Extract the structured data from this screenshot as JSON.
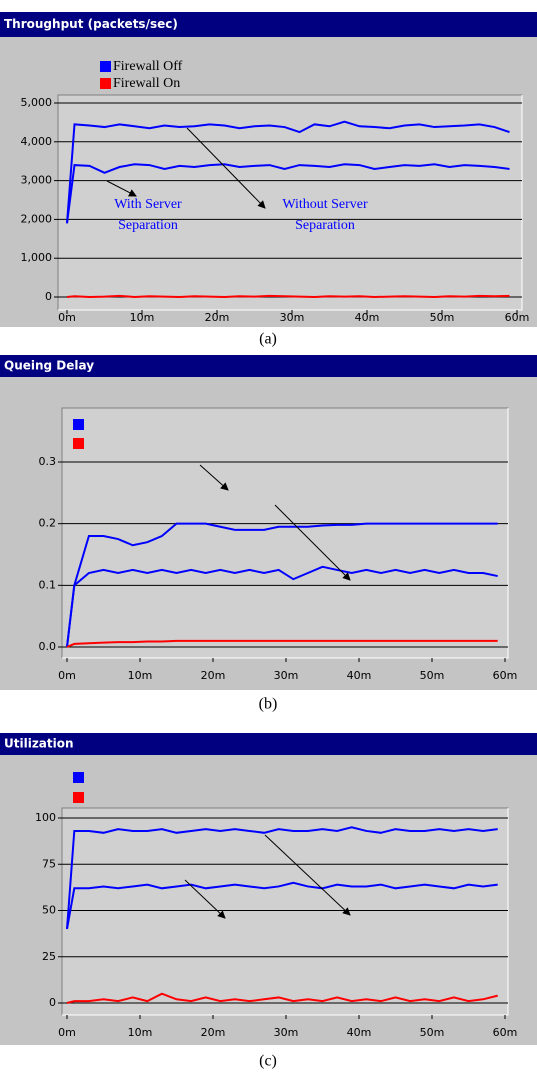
{
  "chart_data": [
    {
      "type": "line",
      "title": "Throughput (packets/sec)",
      "caption": "(a)",
      "legend": [
        {
          "name": "Firewall Off",
          "color": "#0000ff"
        },
        {
          "name": "Firewall On",
          "color": "#ff0000"
        }
      ],
      "x": [
        0,
        1,
        3,
        5,
        7,
        9,
        11,
        13,
        15,
        17,
        19,
        21,
        23,
        25,
        27,
        29,
        31,
        33,
        35,
        37,
        39,
        41,
        43,
        45,
        47,
        49,
        51,
        53,
        55,
        57,
        59
      ],
      "series": [
        {
          "color": "#0000ff",
          "values": [
            1900,
            4450,
            4420,
            4380,
            4450,
            4400,
            4350,
            4420,
            4380,
            4400,
            4450,
            4420,
            4350,
            4400,
            4420,
            4380,
            4250,
            4450,
            4400,
            4520,
            4400,
            4380,
            4350,
            4420,
            4450,
            4380,
            4400,
            4420,
            4450,
            4380,
            4250
          ]
        },
        {
          "color": "#0000ff",
          "values": [
            1900,
            3400,
            3380,
            3200,
            3350,
            3420,
            3400,
            3300,
            3380,
            3350,
            3400,
            3420,
            3350,
            3380,
            3400,
            3300,
            3400,
            3380,
            3350,
            3420,
            3400,
            3300,
            3350,
            3400,
            3380,
            3420,
            3350,
            3400,
            3380,
            3350,
            3300
          ]
        },
        {
          "color": "#ff0000",
          "values": [
            0,
            20,
            0,
            10,
            30,
            0,
            20,
            10,
            0,
            20,
            10,
            0,
            20,
            10,
            30,
            20,
            10,
            0,
            20,
            10,
            20,
            0,
            10,
            20,
            10,
            0,
            20,
            10,
            30,
            20,
            30
          ]
        }
      ],
      "annotations": [
        {
          "lines": [
            "With Server",
            "Separation"
          ]
        },
        {
          "lines": [
            "Without Server",
            "Separation"
          ]
        }
      ],
      "xlim": [
        0,
        60
      ],
      "xticks": [
        {
          "value": 0,
          "label": "0m"
        },
        {
          "value": 10,
          "label": "10m"
        },
        {
          "value": 20,
          "label": "20m"
        },
        {
          "value": 30,
          "label": "30m"
        },
        {
          "value": 40,
          "label": "40m"
        },
        {
          "value": 50,
          "label": "50m"
        },
        {
          "value": 60,
          "label": "60m"
        }
      ],
      "ylim": [
        0,
        5000
      ],
      "yticks": [
        0,
        {
          "value": 1000,
          "label": "1,000"
        },
        {
          "value": 2000,
          "label": "2,000"
        },
        {
          "value": 3000,
          "label": "3,000"
        },
        {
          "value": 4000,
          "label": "4,000"
        },
        {
          "value": 5000,
          "label": "5,000"
        }
      ],
      "grid": true
    },
    {
      "type": "line",
      "title": "Queing Delay",
      "caption": "(b)",
      "legend": [
        {
          "color": "#0000ff"
        },
        {
          "color": "#ff0000"
        }
      ],
      "x": [
        0,
        1,
        3,
        5,
        7,
        9,
        11,
        13,
        15,
        17,
        19,
        21,
        23,
        25,
        27,
        29,
        31,
        33,
        35,
        37,
        39,
        41,
        43,
        45,
        47,
        49,
        51,
        53,
        55,
        57,
        59
      ],
      "series": [
        {
          "color": "#0000ff",
          "values": [
            0,
            0.1,
            0.18,
            0.18,
            0.175,
            0.165,
            0.17,
            0.18,
            0.2,
            0.2,
            0.2,
            0.195,
            0.19,
            0.19,
            0.19,
            0.195,
            0.195,
            0.195,
            0.197,
            0.198,
            0.198,
            0.2,
            0.2,
            0.2,
            0.2,
            0.2,
            0.2,
            0.2,
            0.2,
            0.2,
            0.2
          ]
        },
        {
          "color": "#0000ff",
          "values": [
            0,
            0.1,
            0.12,
            0.125,
            0.12,
            0.125,
            0.12,
            0.125,
            0.12,
            0.125,
            0.12,
            0.125,
            0.12,
            0.125,
            0.12,
            0.125,
            0.11,
            0.12,
            0.13,
            0.125,
            0.12,
            0.125,
            0.12,
            0.125,
            0.12,
            0.125,
            0.12,
            0.125,
            0.12,
            0.12,
            0.115
          ]
        },
        {
          "color": "#ff0000",
          "values": [
            0,
            0.005,
            0.006,
            0.007,
            0.008,
            0.008,
            0.009,
            0.009,
            0.01,
            0.01,
            0.01,
            0.01,
            0.01,
            0.01,
            0.01,
            0.01,
            0.01,
            0.01,
            0.01,
            0.01,
            0.01,
            0.01,
            0.01,
            0.01,
            0.01,
            0.01,
            0.01,
            0.01,
            0.01,
            0.01,
            0.01
          ]
        }
      ],
      "xlim": [
        0,
        60
      ],
      "xticks": [
        {
          "value": 0,
          "label": "0m"
        },
        {
          "value": 10,
          "label": "10m"
        },
        {
          "value": 20,
          "label": "20m"
        },
        {
          "value": 30,
          "label": "30m"
        },
        {
          "value": 40,
          "label": "40m"
        },
        {
          "value": 50,
          "label": "50m"
        },
        {
          "value": 60,
          "label": "60m"
        }
      ],
      "ylim": [
        0,
        0.3
      ],
      "yticks": [
        {
          "value": 0,
          "label": "0.0"
        },
        0.1,
        0.2,
        0.3
      ],
      "grid": true
    },
    {
      "type": "line",
      "title": "Utilization",
      "caption": "(c)",
      "legend": [
        {
          "color": "#0000ff"
        },
        {
          "color": "#ff0000"
        }
      ],
      "x": [
        0,
        1,
        3,
        5,
        7,
        9,
        11,
        13,
        15,
        17,
        19,
        21,
        23,
        25,
        27,
        29,
        31,
        33,
        35,
        37,
        39,
        41,
        43,
        45,
        47,
        49,
        51,
        53,
        55,
        57,
        59
      ],
      "series": [
        {
          "color": "#0000ff",
          "values": [
            40,
            93,
            93,
            92,
            94,
            93,
            93,
            94,
            92,
            93,
            94,
            93,
            94,
            93,
            92,
            94,
            93,
            93,
            94,
            93,
            95,
            93,
            92,
            94,
            93,
            93,
            94,
            93,
            94,
            93,
            94
          ]
        },
        {
          "color": "#0000ff",
          "values": [
            40,
            62,
            62,
            63,
            62,
            63,
            64,
            62,
            63,
            64,
            62,
            63,
            64,
            63,
            62,
            63,
            65,
            63,
            62,
            64,
            63,
            63,
            64,
            62,
            63,
            64,
            63,
            62,
            64,
            63,
            64
          ]
        },
        {
          "color": "#ff0000",
          "values": [
            0,
            1,
            1,
            2,
            1,
            3,
            1,
            5,
            2,
            1,
            3,
            1,
            2,
            1,
            2,
            3,
            1,
            2,
            1,
            3,
            1,
            2,
            1,
            3,
            1,
            2,
            1,
            3,
            1,
            2,
            4
          ]
        }
      ],
      "xlim": [
        0,
        60
      ],
      "xticks": [
        {
          "value": 0,
          "label": "0m"
        },
        {
          "value": 10,
          "label": "10m"
        },
        {
          "value": 20,
          "label": "20m"
        },
        {
          "value": 30,
          "label": "30m"
        },
        {
          "value": 40,
          "label": "40m"
        },
        {
          "value": 50,
          "label": "50m"
        },
        {
          "value": 60,
          "label": "60m"
        }
      ],
      "ylim": [
        0,
        100
      ],
      "yticks": [
        0,
        25,
        50,
        75,
        100
      ],
      "grid": true
    }
  ]
}
